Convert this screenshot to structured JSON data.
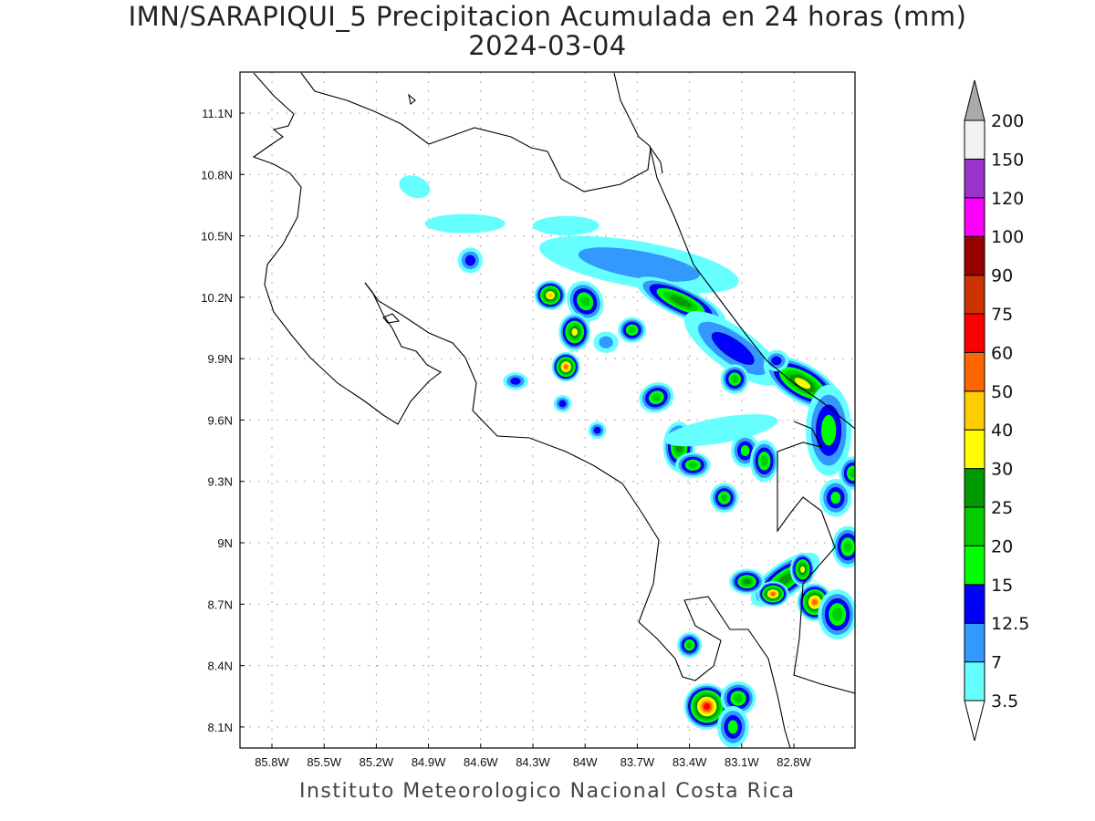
{
  "title": {
    "line1": "IMN/SARAPIQUI_5 Precipitacion Acumulada en 24 horas (mm)",
    "line2": "2024-03-04"
  },
  "footer": "Instituto Meteorologico Nacional Costa Rica",
  "map": {
    "lon_range": [
      -86.0,
      -82.45
    ],
    "lat_range": [
      8.0,
      11.3
    ],
    "lat_ticks": [
      {
        "v": 11.1,
        "label": "11.1N"
      },
      {
        "v": 10.8,
        "label": "10.8N"
      },
      {
        "v": 10.5,
        "label": "10.5N"
      },
      {
        "v": 10.2,
        "label": "10.2N"
      },
      {
        "v": 9.9,
        "label": "9.9N"
      },
      {
        "v": 9.6,
        "label": "9.6N"
      },
      {
        "v": 9.3,
        "label": "9.3N"
      },
      {
        "v": 9.0,
        "label": "9N"
      },
      {
        "v": 8.7,
        "label": "8.7N"
      },
      {
        "v": 8.4,
        "label": "8.4N"
      },
      {
        "v": 8.1,
        "label": "8.1N"
      }
    ],
    "lon_ticks": [
      {
        "v": -85.8,
        "label": "85.8W"
      },
      {
        "v": -85.5,
        "label": "85.5W"
      },
      {
        "v": -85.2,
        "label": "85.2W"
      },
      {
        "v": -84.9,
        "label": "84.9W"
      },
      {
        "v": -84.6,
        "label": "84.6W"
      },
      {
        "v": -84.3,
        "label": "84.3W"
      },
      {
        "v": -84.0,
        "label": "84W"
      },
      {
        "v": -83.7,
        "label": "83.7W"
      },
      {
        "v": -83.4,
        "label": "83.4W"
      },
      {
        "v": -83.1,
        "label": "83.1W"
      },
      {
        "v": -82.8,
        "label": "82.8W"
      }
    ],
    "grid": true
  },
  "colorbar": {
    "levels": [
      "3.5",
      "7",
      "12.5",
      "15",
      "20",
      "25",
      "30",
      "40",
      "50",
      "60",
      "75",
      "90",
      "100",
      "120",
      "150",
      "200"
    ],
    "colors": [
      "#66ffff",
      "#3399ff",
      "#0000ff",
      "#00ff00",
      "#00cc00",
      "#009900",
      "#ffff00",
      "#ffcc00",
      "#ff6600",
      "#ff0000",
      "#cc3300",
      "#990000",
      "#ff00ff",
      "#9933cc",
      "#f2f2f2"
    ],
    "over_color": "#aaaaaa",
    "under_color": "#ffffff"
  },
  "precip_cells": [
    {
      "lon": -83.69,
      "lat": 10.36,
      "ext": [
        0.55,
        0.09
      ],
      "rot": 10,
      "level": 1
    },
    {
      "lon": -83.45,
      "lat": 10.18,
      "ext": [
        0.25,
        0.05
      ],
      "rot": 25,
      "level": 5
    },
    {
      "lon": -83.15,
      "lat": 9.95,
      "ext": [
        0.3,
        0.08
      ],
      "rot": 35,
      "level": 2
    },
    {
      "lon": -82.75,
      "lat": 9.78,
      "ext": [
        0.22,
        0.07
      ],
      "rot": 30,
      "level": 6
    },
    {
      "lon": -82.6,
      "lat": 9.55,
      "ext": [
        0.1,
        0.2
      ],
      "rot": 0,
      "level": 3
    },
    {
      "lon": -84.98,
      "lat": 10.74,
      "ext": [
        0.06,
        0.03
      ],
      "rot": 20,
      "level": 0
    },
    {
      "lon": -84.69,
      "lat": 10.56,
      "ext": [
        0.2,
        0.025
      ],
      "rot": 0,
      "level": 0
    },
    {
      "lon": -84.11,
      "lat": 10.55,
      "ext": [
        0.16,
        0.025
      ],
      "rot": 0,
      "level": 0
    },
    {
      "lon": -84.2,
      "lat": 10.21,
      "ext": [
        0.06,
        0.05
      ],
      "rot": 0,
      "level": 7
    },
    {
      "lon": -84.0,
      "lat": 10.18,
      "ext": [
        0.07,
        0.08
      ],
      "rot": -30,
      "level": 4
    },
    {
      "lon": -84.06,
      "lat": 10.03,
      "ext": [
        0.06,
        0.07
      ],
      "rot": 0,
      "level": 6
    },
    {
      "lon": -84.11,
      "lat": 9.86,
      "ext": [
        0.05,
        0.05
      ],
      "rot": 0,
      "level": 8
    },
    {
      "lon": -84.66,
      "lat": 10.38,
      "ext": [
        0.04,
        0.04
      ],
      "rot": 0,
      "level": 2
    },
    {
      "lon": -84.4,
      "lat": 9.79,
      "ext": [
        0.04,
        0.02
      ],
      "rot": 0,
      "level": 2
    },
    {
      "lon": -83.88,
      "lat": 9.98,
      "ext": [
        0.04,
        0.03
      ],
      "rot": 0,
      "level": 1
    },
    {
      "lon": -83.73,
      "lat": 10.04,
      "ext": [
        0.05,
        0.04
      ],
      "rot": 0,
      "level": 4
    },
    {
      "lon": -83.14,
      "lat": 9.8,
      "ext": [
        0.05,
        0.05
      ],
      "rot": 0,
      "level": 4
    },
    {
      "lon": -82.9,
      "lat": 9.89,
      "ext": [
        0.04,
        0.03
      ],
      "rot": 0,
      "level": 2
    },
    {
      "lon": -83.59,
      "lat": 9.71,
      "ext": [
        0.07,
        0.05
      ],
      "rot": -20,
      "level": 4
    },
    {
      "lon": -83.46,
      "lat": 9.47,
      "ext": [
        0.06,
        0.1
      ],
      "rot": 0,
      "level": 5
    },
    {
      "lon": -83.38,
      "lat": 9.38,
      "ext": [
        0.07,
        0.04
      ],
      "rot": 0,
      "level": 4
    },
    {
      "lon": -83.22,
      "lat": 9.55,
      "ext": [
        0.3,
        0.04
      ],
      "rot": -10,
      "level": 0
    },
    {
      "lon": -83.2,
      "lat": 9.22,
      "ext": [
        0.05,
        0.05
      ],
      "rot": 0,
      "level": 4
    },
    {
      "lon": -83.08,
      "lat": 9.45,
      "ext": [
        0.05,
        0.06
      ],
      "rot": 0,
      "level": 3
    },
    {
      "lon": -82.97,
      "lat": 9.4,
      "ext": [
        0.05,
        0.08
      ],
      "rot": 0,
      "level": 4
    },
    {
      "lon": -82.56,
      "lat": 9.22,
      "ext": [
        0.06,
        0.07
      ],
      "rot": 0,
      "level": 3
    },
    {
      "lon": -82.49,
      "lat": 8.98,
      "ext": [
        0.06,
        0.08
      ],
      "rot": 0,
      "level": 4
    },
    {
      "lon": -82.46,
      "lat": 9.34,
      "ext": [
        0.05,
        0.06
      ],
      "rot": 0,
      "level": 4
    },
    {
      "lon": -82.85,
      "lat": 8.82,
      "ext": [
        0.2,
        0.06
      ],
      "rot": -35,
      "level": 5
    },
    {
      "lon": -82.92,
      "lat": 8.75,
      "ext": [
        0.06,
        0.04
      ],
      "rot": 0,
      "level": 8
    },
    {
      "lon": -82.68,
      "lat": 8.71,
      "ext": [
        0.07,
        0.07
      ],
      "rot": 0,
      "level": 8
    },
    {
      "lon": -82.75,
      "lat": 8.87,
      "ext": [
        0.04,
        0.06
      ],
      "rot": 0,
      "level": 6
    },
    {
      "lon": -83.07,
      "lat": 8.81,
      "ext": [
        0.07,
        0.04
      ],
      "rot": 0,
      "level": 5
    },
    {
      "lon": -82.55,
      "lat": 8.65,
      "ext": [
        0.08,
        0.1
      ],
      "rot": 0,
      "level": 4
    },
    {
      "lon": -83.4,
      "lat": 8.5,
      "ext": [
        0.04,
        0.04
      ],
      "rot": 0,
      "level": 4
    },
    {
      "lon": -83.3,
      "lat": 8.2,
      "ext": [
        0.1,
        0.09
      ],
      "rot": -20,
      "level": 9
    },
    {
      "lon": -83.12,
      "lat": 8.24,
      "ext": [
        0.07,
        0.06
      ],
      "rot": 0,
      "level": 4
    },
    {
      "lon": -83.15,
      "lat": 8.1,
      "ext": [
        0.06,
        0.08
      ],
      "rot": 0,
      "level": 3
    },
    {
      "lon": -84.13,
      "lat": 9.68,
      "ext": [
        0.02,
        0.02
      ],
      "rot": 0,
      "level": 2
    },
    {
      "lon": -83.93,
      "lat": 9.55,
      "ext": [
        0.02,
        0.02
      ],
      "rot": 0,
      "level": 2
    }
  ]
}
